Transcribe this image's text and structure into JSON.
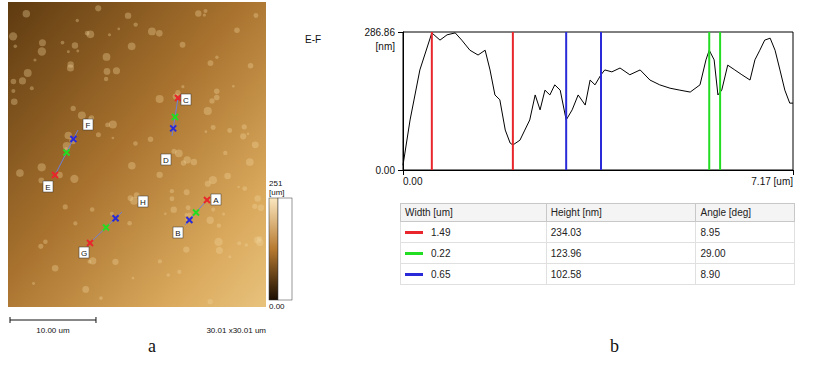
{
  "panel_a": {
    "letter": "a",
    "image_size": 30.01,
    "size_label": "30.01 x30.01 um",
    "scale_bar": {
      "length": 10.0,
      "label": "10.00 um"
    },
    "colorbar": {
      "range": [
        0,
        251
      ],
      "ticks": [
        {
          "value": 0,
          "label": "0.00"
        },
        251
      ],
      "unit": "[um]"
    },
    "profiles": [
      [
        "C",
        "D"
      ],
      [
        "E",
        "F"
      ],
      [
        "G",
        "H"
      ],
      [
        "A",
        "B"
      ]
    ]
  },
  "chart_data": {
    "type": "line",
    "letter": "b",
    "title": "E-F",
    "y_label": "[nm]",
    "x": [
      0.0,
      0.13,
      0.31,
      0.53,
      0.68,
      0.81,
      0.96,
      1.08,
      1.23,
      1.38,
      1.51,
      1.6,
      1.69,
      1.78,
      1.88,
      1.97,
      2.02,
      2.15,
      2.24,
      2.33,
      2.43,
      2.52,
      2.61,
      2.7,
      2.79,
      2.89,
      3.0,
      3.11,
      3.22,
      3.35,
      3.44,
      3.53,
      3.64,
      3.71,
      3.84,
      3.99,
      4.17,
      4.36,
      4.54,
      4.72,
      4.91,
      5.09,
      5.28,
      5.46,
      5.57,
      5.63,
      5.72,
      5.79,
      5.86,
      5.97,
      6.1,
      6.23,
      6.38,
      6.47,
      6.56,
      6.65,
      6.75,
      6.84,
      6.93,
      7.02,
      7.11,
      7.17
    ],
    "values": [
      10,
      104,
      208,
      285,
      270,
      281,
      285,
      270,
      249,
      239,
      249,
      208,
      156,
      146,
      83,
      56,
      52,
      62,
      83,
      104,
      156,
      125,
      166,
      156,
      177,
      166,
      104,
      125,
      156,
      135,
      187,
      177,
      198,
      208,
      204,
      212,
      198,
      208,
      187,
      177,
      170,
      166,
      162,
      177,
      229,
      249,
      229,
      156,
      166,
      218,
      208,
      198,
      187,
      229,
      249,
      270,
      274,
      249,
      208,
      166,
      139,
      139
    ],
    "color": "#000000",
    "xlim": [
      0,
      7.17
    ],
    "xticks": [
      {
        "value": 0,
        "label": "0.00"
      },
      {
        "value": 7.17,
        "label": "7.17 [um]"
      }
    ],
    "ylim": [
      0,
      286.86
    ],
    "yticks": [
      {
        "value": 0,
        "label": "0.00"
      },
      286.86
    ],
    "grid": false,
    "cursors": [
      {
        "color": "#e8262b",
        "x": [
          0.53,
          2.02
        ]
      },
      {
        "color": "#22dd22",
        "x": [
          5.63,
          5.83
        ]
      },
      {
        "color": "#2a2ad8",
        "x": [
          3.0,
          3.64
        ]
      }
    ]
  },
  "table": {
    "header": [
      "Width [um]",
      "Height [nm]",
      "Angle [deg]"
    ],
    "rows": [
      {
        "color": "#e8262b",
        "cells": [
          "1.49",
          "234.03",
          "8.95"
        ]
      },
      {
        "color": "#22dd22",
        "cells": [
          "0.22",
          "123.96",
          "29.00"
        ]
      },
      {
        "color": "#2a2ad8",
        "cells": [
          "0.65",
          "102.58",
          "8.90"
        ]
      }
    ]
  }
}
